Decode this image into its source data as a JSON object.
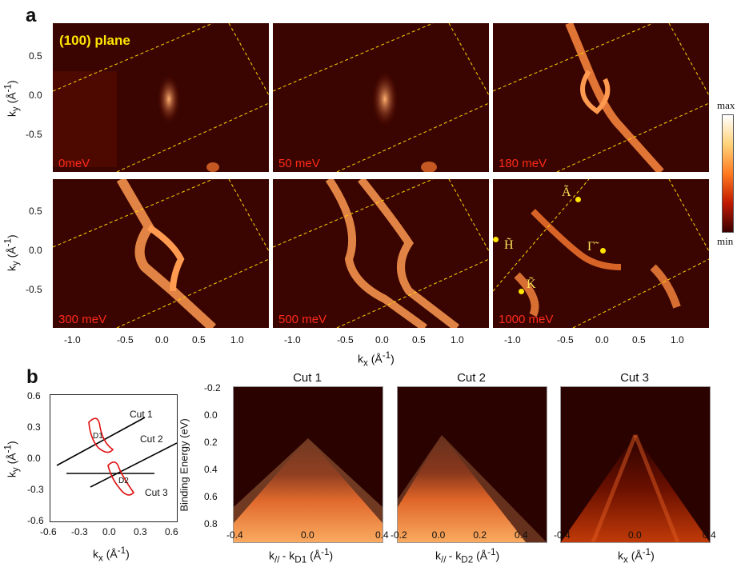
{
  "figure": {
    "panel_a_letter": "a",
    "panel_b_letter": "b",
    "plane_label": "(100) plane",
    "colorbar": {
      "max_label": "max",
      "min_label": "min"
    },
    "maps": [
      {
        "energy": "0meV"
      },
      {
        "energy": "50 meV"
      },
      {
        "energy": "180 meV"
      },
      {
        "energy": "300 meV"
      },
      {
        "energy": "500 meV"
      },
      {
        "energy": "1000 meV"
      }
    ],
    "high_symmetry_points": {
      "A": "Ã",
      "H": "H̃",
      "Gamma": "Γ̃",
      "K": "K̃"
    },
    "axes_a": {
      "ylabel": "k",
      "ylabel_sub": "y",
      "ylabel_unit": " (Å",
      "ylabel_sup": "-1",
      "ylabel_close": ")",
      "xlabel": "k",
      "xlabel_sub": "x",
      "xlabel_unit": " (Å",
      "xlabel_sup": "-1",
      "xlabel_close": ")",
      "yticks": [
        "0.5",
        "0.0",
        "-0.5"
      ],
      "xticks": [
        "-1.0",
        "-0.5",
        "0.0",
        "0.5",
        "1.0"
      ]
    },
    "schematic": {
      "ylabel": "k",
      "ylabel_sub": "y",
      "ylabel_unit": " (Å",
      "ylabel_sup": "-1",
      "ylabel_close": ")",
      "xlabel": "k",
      "xlabel_sub": "x",
      "xlabel_unit": " (Å",
      "xlabel_sup": "-1",
      "xlabel_close": ")",
      "yticks": [
        "0.6",
        "0.3",
        "0.0",
        "-0.3",
        "-0.6"
      ],
      "xticks": [
        "-0.6",
        "-0.3",
        "0.0",
        "0.3",
        "0.6"
      ],
      "labels": {
        "cut1": "Cut 1",
        "cut2": "Cut 2",
        "cut3": "Cut 3",
        "d1": "D1",
        "d2": "D2"
      }
    },
    "cuts": [
      {
        "title": "Cut 1",
        "xticks": [
          "-0.4",
          "0.0",
          "0.4"
        ],
        "xlabel": "k",
        "xlabel_sub": "// ",
        "xlabel_mid": " - k",
        "xlabel_sub2": "D1",
        "xlabel_unit": " (Å",
        "xlabel_sup": "-1",
        "xlabel_close": ")"
      },
      {
        "title": "Cut 2",
        "xticks": [
          "-0.2",
          "0.0",
          "0.2",
          "0.4"
        ],
        "xlabel": "k",
        "xlabel_sub": "// ",
        "xlabel_mid": " - k",
        "xlabel_sub2": "D2",
        "xlabel_unit": " (Å",
        "xlabel_sup": "-1",
        "xlabel_close": ")"
      },
      {
        "title": "Cut 3",
        "xticks": [
          "-0.4",
          "0.0",
          "0.4"
        ],
        "xlabel": "k",
        "xlabel_sub": "x",
        "xlabel_mid": "",
        "xlabel_sub2": "",
        "xlabel_unit": " (Å",
        "xlabel_sup": "-1",
        "xlabel_close": ")"
      }
    ],
    "binding_energy": {
      "ylabel": "Binding Energy (eV)",
      "yticks": [
        "-0.2",
        "0.0",
        "0.2",
        "0.4",
        "0.6",
        "0.8"
      ]
    }
  }
}
